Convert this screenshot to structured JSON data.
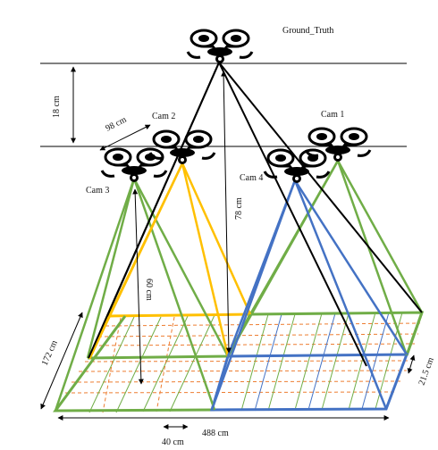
{
  "labels": {
    "ground_truth": "Ground_Truth",
    "cam1": "Cam 1",
    "cam2": "Cam 2",
    "cam3": "Cam 3",
    "cam4": "Cam 4",
    "dim_18": "18 cm",
    "dim_98": "98 cm",
    "dim_78": "78 cm",
    "dim_60": "60 cm",
    "dim_172": "172 cm",
    "dim_215": "21.5 cm",
    "dim_488": "488 cm",
    "dim_40": "40 cm"
  },
  "colors": {
    "green": "#70ad47",
    "yellow": "#ffc000",
    "blue": "#4472c4",
    "grid_orange": "#ed7d31",
    "black": "#000000"
  },
  "icons": {
    "drone": "quadcopter-drone-icon"
  }
}
